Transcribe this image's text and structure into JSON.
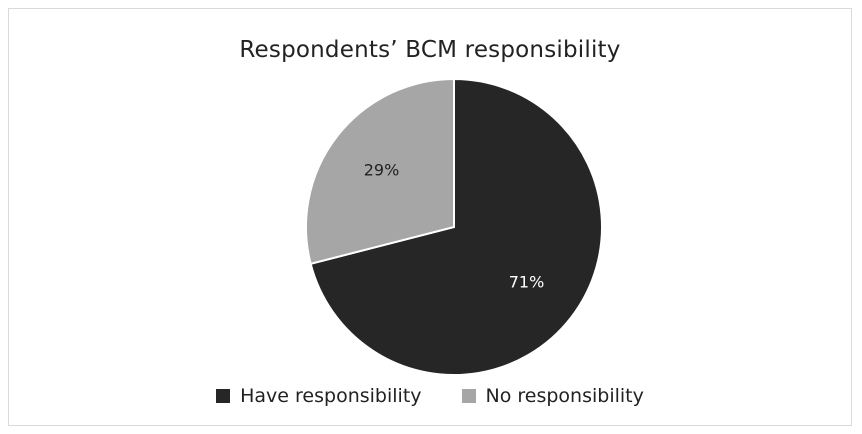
{
  "chart_data": {
    "type": "pie",
    "title": "Respondents’ BCM responsibility",
    "categories": [
      "Have responsibility",
      "No responsibility"
    ],
    "values": [
      71,
      29
    ],
    "labels": [
      "71%",
      "29%"
    ],
    "colors": [
      "#262626",
      "#a6a6a6"
    ],
    "label_colors": [
      "#ffffff",
      "#222222"
    ],
    "legend_position": "bottom",
    "start_angle_deg": 0,
    "direction": "clockwise"
  }
}
